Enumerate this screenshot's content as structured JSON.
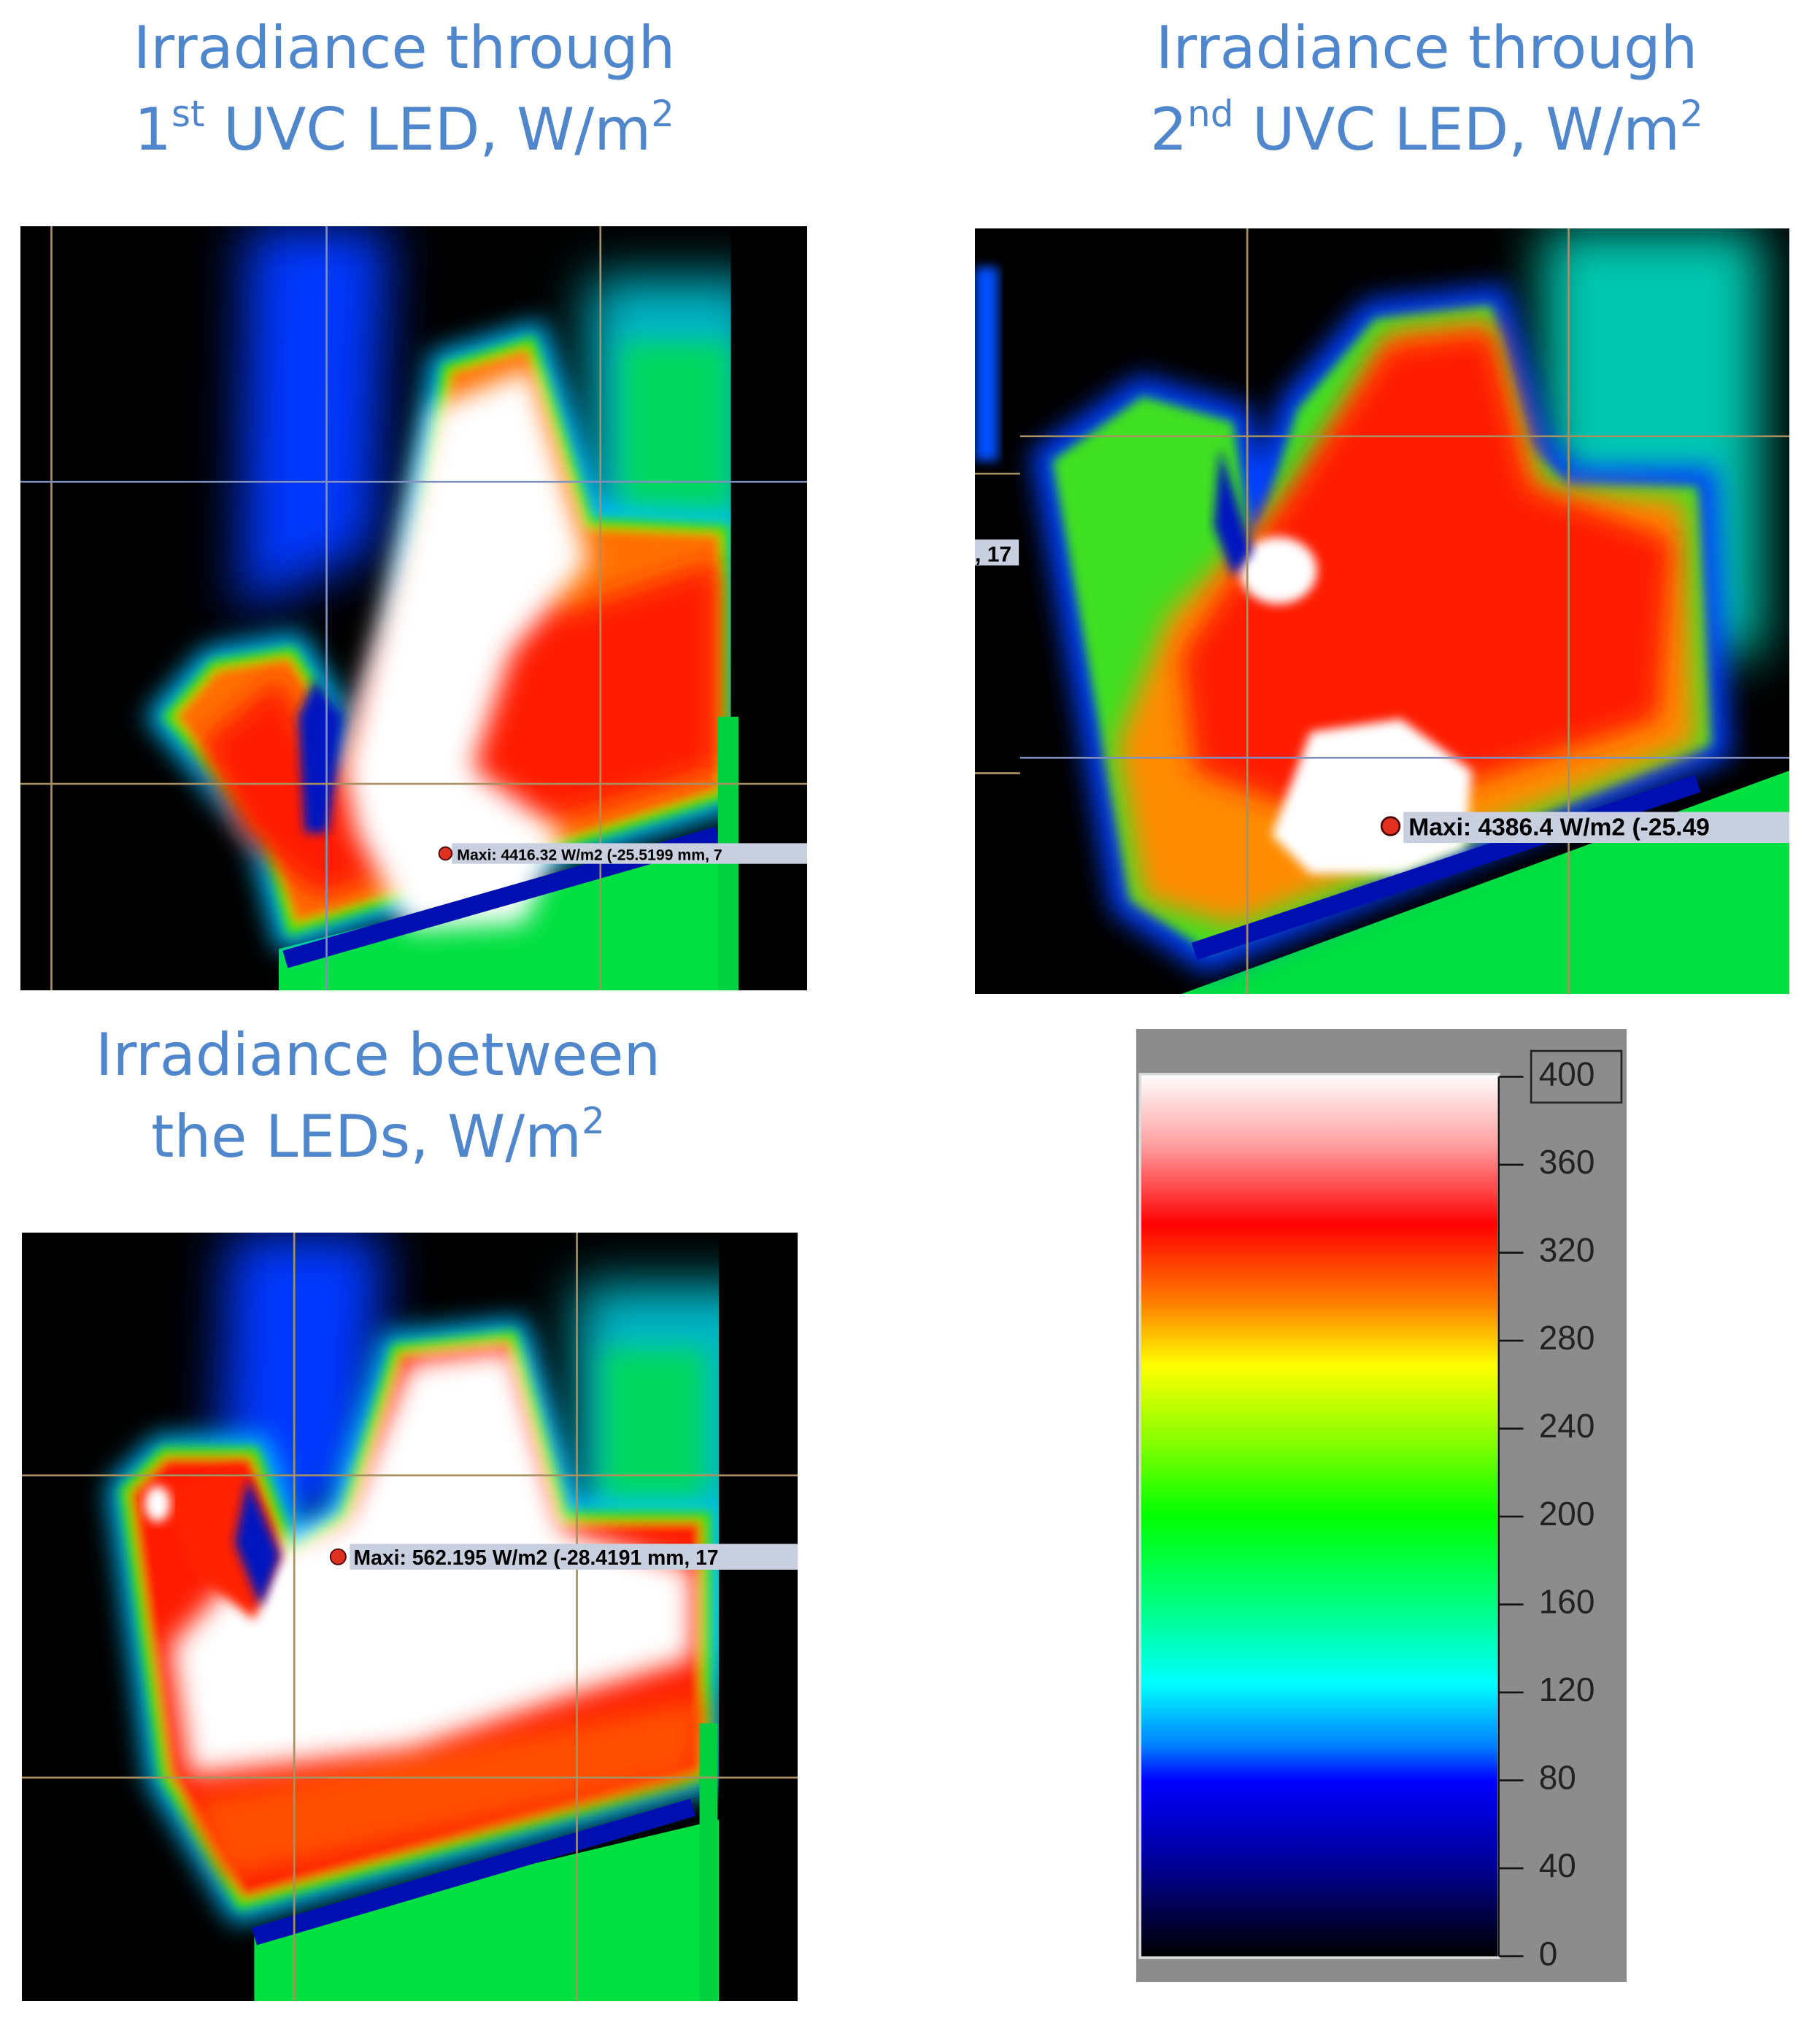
{
  "panels": [
    {
      "title": {
        "line1": "Irradiance through",
        "line2": [
          "1",
          "st",
          " UVC LED, W/m",
          "2"
        ]
      },
      "annotation": "Maxi: 4416.32 W/m2 (-25.5199 mm, 7"
    },
    {
      "title": {
        "line1": "Irradiance through",
        "line2": [
          "2",
          "nd",
          " UVC LED, W/m",
          "2"
        ]
      },
      "annotation": "Maxi: 4386.4 W/m2 (-25.49",
      "edge_label": ", 17"
    },
    {
      "title": {
        "line1": "Irradiance between",
        "line2": [
          "the LEDs, W/m",
          "2"
        ]
      },
      "annotation": "Maxi: 562.195 W/m2 (-28.4191 mm, 17"
    }
  ],
  "colorbar": {
    "range": [
      0,
      400
    ],
    "ticks": [
      0,
      40,
      80,
      120,
      160,
      200,
      240,
      280,
      320,
      360,
      400
    ]
  }
}
